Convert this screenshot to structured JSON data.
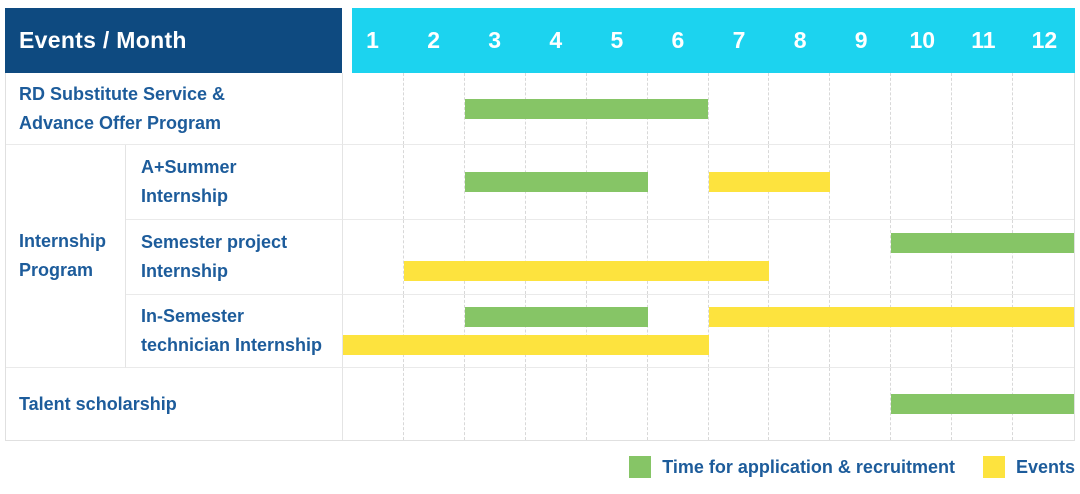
{
  "header": {
    "title": "Events / Month",
    "months": [
      "1",
      "2",
      "3",
      "4",
      "5",
      "6",
      "7",
      "8",
      "9",
      "10",
      "11",
      "12"
    ]
  },
  "labels": {
    "row0": [
      "RD Substitute Service &",
      "Advance Offer Program"
    ],
    "group": [
      "Internship",
      "Program"
    ],
    "row1": [
      "A+Summer",
      "Internship"
    ],
    "row2": [
      "Semester project",
      "Internship"
    ],
    "row3": [
      "In-Semester",
      "technician Internship"
    ],
    "row4": [
      "Talent scholarship",
      ""
    ]
  },
  "colors": {
    "header_bg": "#0e4a80",
    "months_strip_bg": "#1cd3ef",
    "label_text": "#1d5c9b",
    "application_green": "#86c566",
    "events_yellow": "#fde33e",
    "grid_dashed_line": "#d8d8d8",
    "row_line": "#eaeaea"
  },
  "chart_data": {
    "type": "bar",
    "subtype": "gantt-timeline",
    "title": "Events / Month",
    "x_ticks": [
      "1",
      "2",
      "3",
      "4",
      "5",
      "6",
      "7",
      "8",
      "9",
      "10",
      "11",
      "12"
    ],
    "x_range": [
      1,
      12
    ],
    "grid": "vertical-dashed-per-month",
    "legend_position": "bottom-right",
    "rows": [
      {
        "group": "RD Substitute Service & Advance Offer Program",
        "item": "",
        "bands": [
          [
            {
              "series": "application",
              "start_month": 3,
              "end_month": 6
            }
          ]
        ]
      },
      {
        "group": "Internship Program",
        "item": "A+Summer Internship",
        "bands": [
          [
            {
              "series": "application",
              "start_month": 3,
              "end_month": 5
            },
            {
              "series": "events",
              "start_month": 7,
              "end_month": 8
            }
          ]
        ]
      },
      {
        "group": "Internship Program",
        "item": "Semester project Internship",
        "bands": [
          [
            {
              "series": "application",
              "start_month": 10,
              "end_month": 12
            }
          ],
          [
            {
              "series": "events",
              "start_month": 2,
              "end_month": 7
            }
          ]
        ]
      },
      {
        "group": "Internship Program",
        "item": "In-Semester technician Internship",
        "bands": [
          [
            {
              "series": "application",
              "start_month": 3,
              "end_month": 5
            },
            {
              "series": "events",
              "start_month": 7,
              "end_month": 12
            }
          ],
          [
            {
              "series": "events",
              "start_month": 1,
              "end_month": 6
            }
          ]
        ]
      },
      {
        "group": "Talent scholarship",
        "item": "",
        "bands": [
          [
            {
              "series": "application",
              "start_month": 10,
              "end_month": 12
            }
          ]
        ]
      }
    ],
    "legend": [
      {
        "series": "application",
        "label": "Time for application & recruitment",
        "color": "#86c566"
      },
      {
        "series": "events",
        "label": "Events",
        "color": "#fde33e"
      }
    ]
  }
}
